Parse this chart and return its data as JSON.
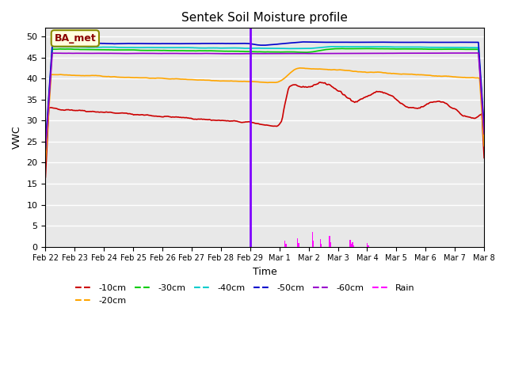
{
  "title": "Sentek Soil Moisture profile",
  "xlabel": "Time",
  "ylabel": "VWC",
  "annotation_label": "BA_met",
  "ylim": [
    0,
    52
  ],
  "yticks": [
    0,
    5,
    10,
    15,
    20,
    25,
    30,
    35,
    40,
    45,
    50
  ],
  "plot_bg_color": "#e8e8e8",
  "vline_x": 7.0,
  "vline_color": "#7f00ff",
  "colors": {
    "-10cm": "#cc0000",
    "-20cm": "#ffa500",
    "-30cm": "#00cc00",
    "-40cm": "#00cccc",
    "-50cm": "#0000cc",
    "-60cm": "#9900cc",
    "Rain": "#ff00ff"
  },
  "n_points": 384,
  "date_start": 0,
  "date_end": 15
}
